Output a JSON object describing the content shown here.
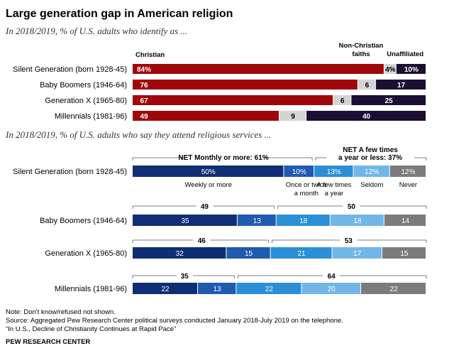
{
  "title": "Large generation gap in American religion",
  "subtitle_identity": "In 2018/2019, % of U.S. adults who identify as ...",
  "subtitle_attend": "In 2018/2019, % of U.S. adults who say they attend religious services ...",
  "notes": [
    "Note: Don't know/refused not shown.",
    "Source: Aggregated Pew Research Center political surveys conducted January 2018-July 2019 on the telephone.",
    "“In U.S., Decline of Christianity Continues at Rapid Pace”"
  ],
  "source": "PEW RESEARCH CENTER",
  "chart_data": [
    {
      "type": "bar",
      "orientation": "horizontal",
      "stacked": true,
      "categories": [
        "Silent Generation (born 1928-45)",
        "Baby Boomers (1946-64)",
        "Generation X (1965-80)",
        "Millennials (1981-96)"
      ],
      "series": [
        {
          "name": "Christian",
          "values": [
            84,
            76,
            67,
            49
          ],
          "color": "#a0070a",
          "labels": [
            "84%",
            "76",
            "67",
            "49"
          ]
        },
        {
          "name": "Non-Christian faiths",
          "values": [
            4,
            6,
            6,
            9
          ],
          "color": "#d4d4d4",
          "labels": [
            "4%",
            "6",
            "6",
            "9"
          ]
        },
        {
          "name": "Unaffiliated",
          "values": [
            10,
            17,
            25,
            40
          ],
          "color": "#1c0f33",
          "labels": [
            "10%",
            "17",
            "25",
            "40"
          ]
        }
      ],
      "series_header_labels": [
        "Christian",
        "Non-Christian",
        "faiths",
        "Unaffiliated"
      ]
    },
    {
      "type": "bar",
      "orientation": "horizontal",
      "stacked": true,
      "categories": [
        "Silent Generation (born 1928-45)",
        "Baby Boomers (1946-64)",
        "Generation X (1965-80)",
        "Millennials (1981-96)"
      ],
      "series": [
        {
          "name": "Weekly or more",
          "values": [
            50,
            35,
            32,
            22
          ],
          "color": "#102e75",
          "labels": [
            "50%",
            "35",
            "32",
            "22"
          ]
        },
        {
          "name": "Once or twice a month",
          "values": [
            10,
            13,
            15,
            13
          ],
          "color": "#1f5bb0",
          "labels": [
            "10%",
            "13",
            "15",
            "13"
          ]
        },
        {
          "name": "A few times a year",
          "values": [
            13,
            18,
            21,
            22
          ],
          "color": "#2a8fd6",
          "labels": [
            "13%",
            "18",
            "21",
            "22"
          ]
        },
        {
          "name": "Seldom",
          "values": [
            12,
            18,
            17,
            20
          ],
          "color": "#72b6e8",
          "labels": [
            "12%",
            "18",
            "17",
            "20"
          ]
        },
        {
          "name": "Never",
          "values": [
            12,
            14,
            15,
            22
          ],
          "color": "#7b7b7b",
          "labels": [
            "12%",
            "14",
            "15",
            "22"
          ]
        }
      ],
      "category_labels": [
        [
          "Weekly or more"
        ],
        [
          "Once or twice",
          "a month"
        ],
        [
          "A few times",
          "a year"
        ],
        [
          "Seldom"
        ],
        [
          "Never"
        ]
      ],
      "net_groups": {
        "monthly": {
          "label": "NET Monthly or more: 61%",
          "values": [
            "",
            "49",
            "46",
            "35"
          ]
        },
        "yearly": {
          "label_lines": [
            "NET A few times",
            "a year or less: 37%"
          ],
          "values": [
            "",
            "50",
            "53",
            "64"
          ]
        }
      }
    }
  ]
}
